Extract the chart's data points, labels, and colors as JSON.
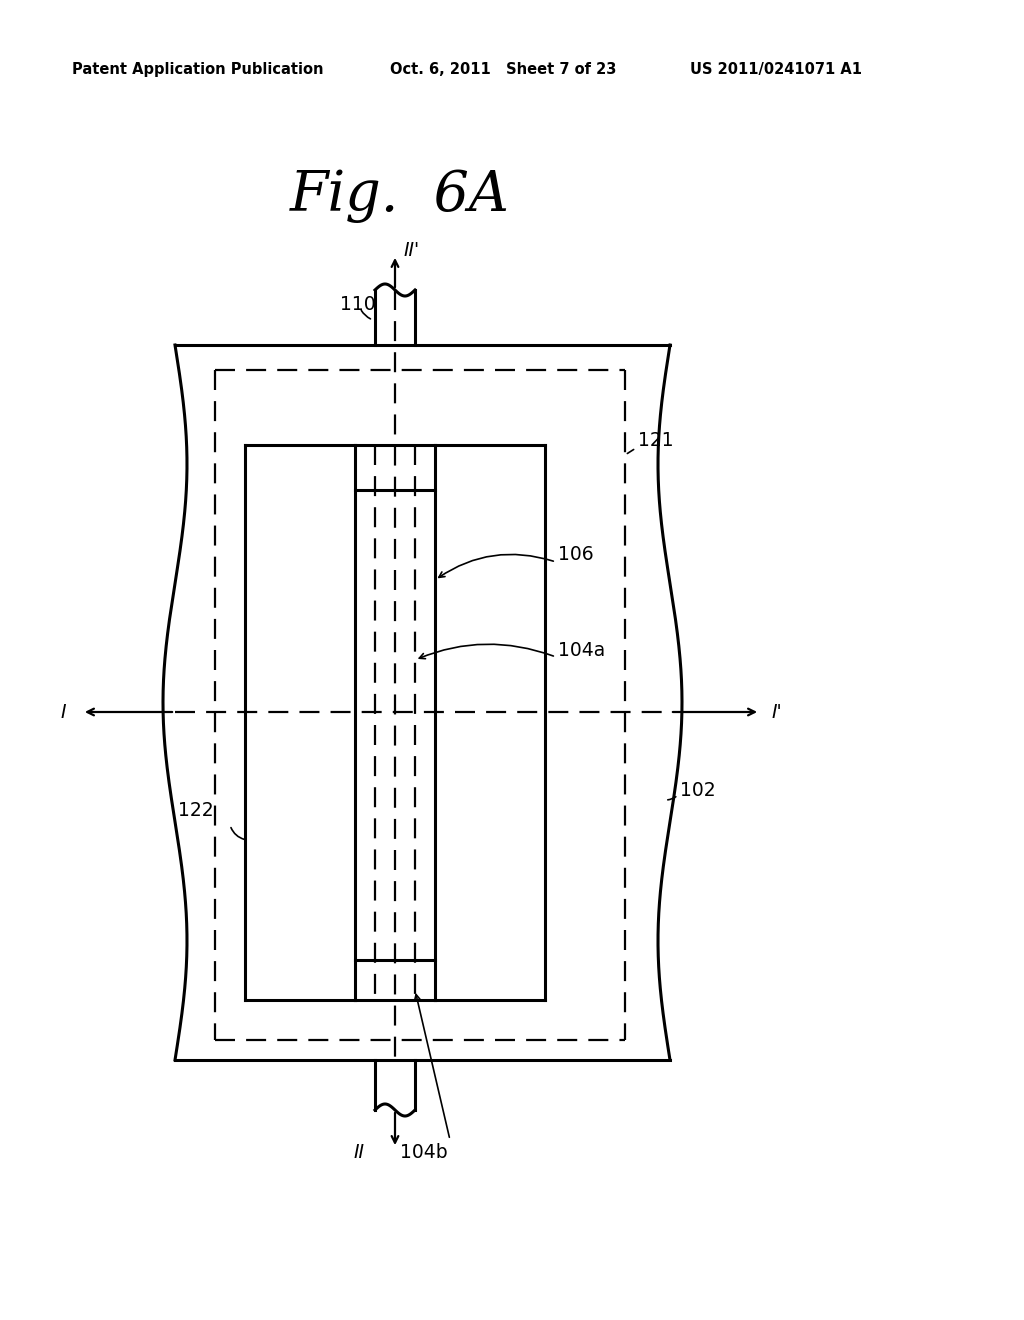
{
  "title": "Fig.  6A",
  "header_left": "Patent Application Publication",
  "header_mid": "Oct. 6, 2011   Sheet 7 of 23",
  "header_right": "US 2011/0241071 A1",
  "bg_color": "#ffffff",
  "line_color": "#000000",
  "label_110": "110",
  "label_121": "121",
  "label_106": "106",
  "label_104a": "104a",
  "label_102": "102",
  "label_122": "122",
  "label_104b": "104b",
  "label_I": "I",
  "label_Ip": "I'",
  "label_IIp": "II'",
  "label_II": "II"
}
